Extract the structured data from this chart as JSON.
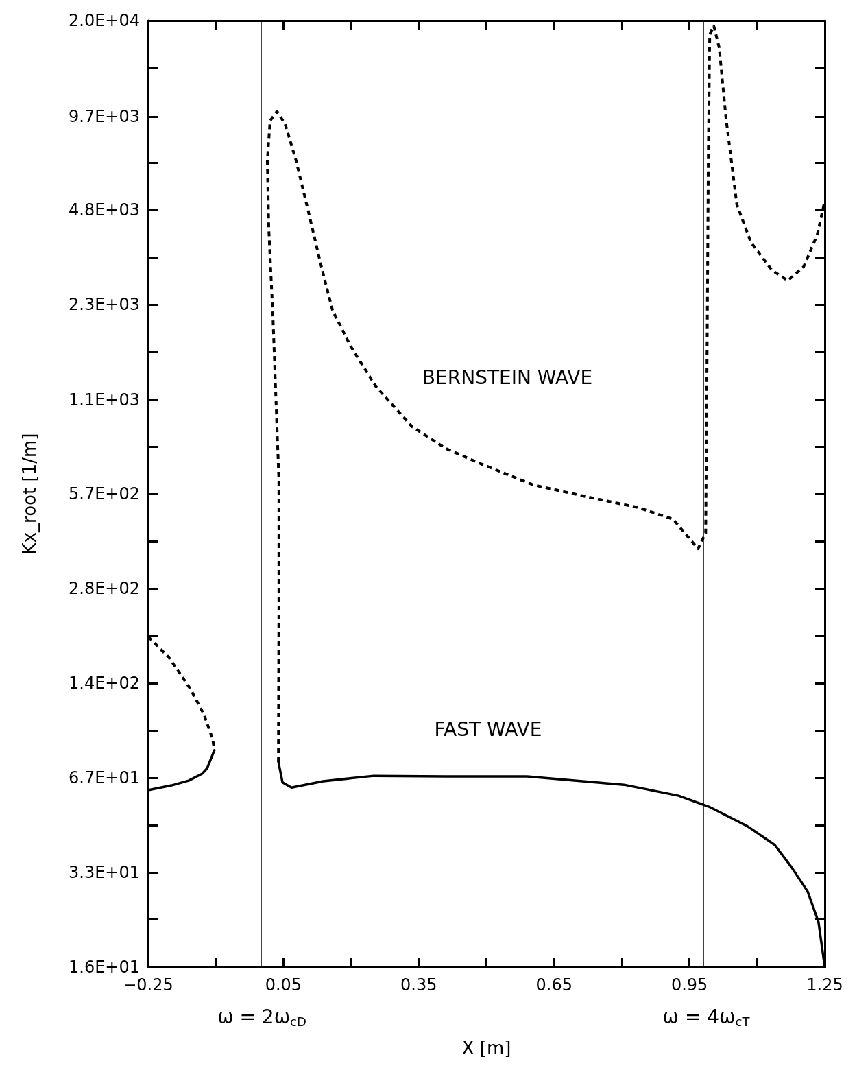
{
  "chart_data": {
    "type": "line",
    "xlabel": "X [m]",
    "ylabel": "Kx_root [1/m]",
    "log": "y",
    "grid": false,
    "marker": "none",
    "xlim": [
      -0.25,
      1.25
    ],
    "xticks": [
      {
        "value": -0.25,
        "label": "−0.25"
      },
      {
        "value": -0.1,
        "label": null
      },
      0.05,
      {
        "value": 0.2,
        "label": null
      },
      0.35,
      {
        "value": 0.5,
        "label": null
      },
      0.65,
      {
        "value": 0.8,
        "label": null
      },
      0.95,
      {
        "value": 1.1,
        "label": null
      },
      1.25
    ],
    "ylim": [
      16,
      20000
    ],
    "yticks": [
      {
        "value": 16,
        "label": "1.6E+01"
      },
      {
        "value": 22.9,
        "label": null
      },
      {
        "value": 32.6,
        "label": "3.3E+01"
      },
      {
        "value": 46.6,
        "label": null
      },
      {
        "value": 66.6,
        "label": "6.7E+01"
      },
      {
        "value": 95.1,
        "label": null
      },
      {
        "value": 136,
        "label": "1.4E+02"
      },
      {
        "value": 194,
        "label": null
      },
      {
        "value": 277,
        "label": "2.8E+02"
      },
      {
        "value": 396,
        "label": null
      },
      {
        "value": 566,
        "label": "5.7E+02"
      },
      {
        "value": 808,
        "label": null
      },
      {
        "value": 1150,
        "label": "1.1E+03"
      },
      {
        "value": 1650,
        "label": null
      },
      {
        "value": 2350,
        "label": "2.3E+03"
      },
      {
        "value": 3360,
        "label": null
      },
      {
        "value": 4800,
        "label": "4.8E+03"
      },
      {
        "value": 6860,
        "label": null
      },
      {
        "value": 9700,
        "label": "9.7E+03"
      },
      {
        "value": 14000,
        "label": null
      },
      {
        "value": 20000,
        "label": "2.0E+04"
      }
    ],
    "series": [
      {
        "color": "#000000",
        "line_style": "dashed",
        "x": [
          -0.25,
          -0.204,
          -0.156,
          -0.127,
          -0.107,
          -0.103,
          0.0,
          0.039,
          0.04,
          0.04,
          0.027,
          0.0175,
          0.0144,
          0.0205,
          0.0357,
          0.054,
          0.078,
          0.106,
          0.133,
          0.159,
          0.2,
          0.255,
          0.335,
          0.41,
          0.487,
          0.604,
          0.721,
          0.837,
          0.914,
          0.969,
          0.986,
          0.989,
          0.992,
          0.995,
          1.004,
          1.016,
          1.031,
          1.055,
          1.086,
          1.133,
          1.168,
          1.203,
          1.233,
          1.25
        ],
        "values": [
          193,
          165,
          130,
          108,
          89.4,
          82,
          null,
          75,
          243,
          627,
          2100,
          4200,
          6970,
          9400,
          10100,
          9160,
          6970,
          4700,
          3180,
          2250,
          1710,
          1270,
          939,
          796,
          710,
          605,
          554,
          510,
          467,
          374,
          421,
          1550,
          7410,
          18000,
          19200,
          16300,
          9600,
          5010,
          3770,
          3050,
          2820,
          3130,
          3970,
          5140
        ]
      },
      {
        "color": "#000000",
        "line_style": "solid",
        "x": [
          -0.25,
          -0.198,
          -0.16,
          -0.13,
          -0.119,
          -0.103,
          0.0,
          0.039,
          0.048,
          0.068,
          0.138,
          0.25,
          0.41,
          0.59,
          0.805,
          0.926,
          0.993,
          1.078,
          1.139,
          1.176,
          1.212,
          1.236,
          1.25
        ],
        "values": [
          60.7,
          62.9,
          65.2,
          68.7,
          71.6,
          82,
          null,
          75,
          64.3,
          61.9,
          64.9,
          67.6,
          67.3,
          67.3,
          63.2,
          58.2,
          53.6,
          46.3,
          40.2,
          34,
          28.3,
          22.5,
          16
        ]
      }
    ],
    "ref_lines": [
      {
        "axis": "x",
        "value": 0.0
      },
      {
        "axis": "x",
        "value": 0.985
      }
    ],
    "annotations": [
      "BERNSTEIN WAVE",
      "FAST WAVE",
      "ω = 2ω$_{cD}$",
      "ω = 4ω$_{cT}$"
    ]
  }
}
